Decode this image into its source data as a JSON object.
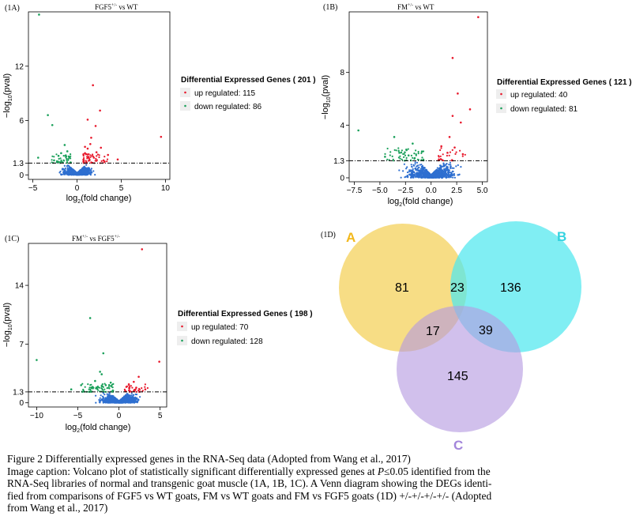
{
  "colors": {
    "up": "#e8192c",
    "down": "#1aa05a",
    "ns": "#2e6fd0",
    "venn_a": "#f5d66a",
    "venn_b": "#4fe8ee",
    "venn_c": "#b59ae0",
    "venn_label_a": "#f2b81c",
    "venn_label_b": "#35d3e0",
    "venn_label_c": "#a386db"
  },
  "chart_data": [
    {
      "type": "scatter",
      "panel": "(1A)",
      "title_main": "FGF5",
      "title_sup": "+/-",
      "title_rest": " vs WT",
      "xlabel_base": "log",
      "xlabel_sub": "2",
      "xlabel_rest": "(fold change)",
      "ylabel_base": "−log",
      "ylabel_sub": "10",
      "ylabel_rest": "(pval)",
      "xlim": [
        -5.5,
        10.5
      ],
      "ylim": [
        -0.5,
        18
      ],
      "xticks": [
        -5,
        0,
        5,
        10
      ],
      "yticks": [
        0,
        1.3,
        6,
        12
      ],
      "threshold": 1.3,
      "legend_title": "Differential Expressed Genes ( 201 )",
      "legend_up": "up regulated: 115",
      "legend_down": "down regulated: 86",
      "highlights": {
        "up": [
          [
            9.5,
            4.2
          ],
          [
            1.8,
            9.9
          ],
          [
            2.6,
            7.1
          ],
          [
            1.2,
            6.1
          ],
          [
            2.1,
            5.4
          ],
          [
            1.5,
            3.4
          ],
          [
            0.9,
            3.1
          ],
          [
            2.2,
            2.5
          ],
          [
            3.5,
            2.2
          ],
          [
            4.6,
            1.7
          ],
          [
            1.2,
            2.9
          ],
          [
            2.7,
            3.0
          ],
          [
            1.6,
            4.1
          ],
          [
            0.9,
            2.4
          ],
          [
            1.9,
            1.9
          ],
          [
            3.0,
            1.6
          ]
        ],
        "down": [
          [
            -4.3,
            17.7
          ],
          [
            -3.3,
            6.6
          ],
          [
            -2.8,
            5.5
          ],
          [
            -4.4,
            1.9
          ],
          [
            -1.8,
            2.4
          ],
          [
            -1.4,
            3.3
          ],
          [
            -2.1,
            2.1
          ],
          [
            -1.1,
            2.6
          ],
          [
            -0.9,
            2.0
          ],
          [
            -2.6,
            1.6
          ]
        ]
      },
      "cloud": {
        "sx": 0.9,
        "up_x": [
          0.7,
          3.5
        ],
        "down_x": [
          -3.0,
          -0.7
        ],
        "up_n": 60,
        "down_n": 45
      }
    },
    {
      "type": "scatter",
      "panel": "(1B)",
      "title_main": "FM",
      "title_sup": "+/-",
      "title_rest": " vs WT",
      "xlabel_base": "log",
      "xlabel_sub": "2",
      "xlabel_rest": "(fold change)",
      "ylabel_base": "−log",
      "ylabel_sub": "10",
      "ylabel_rest": "(pval)",
      "xlim": [
        -8,
        5.5
      ],
      "ylim": [
        -0.3,
        12.6
      ],
      "xticks": [
        -7.5,
        -5.0,
        -2.5,
        0.0,
        2.5,
        5.0
      ],
      "yticks": [
        0,
        1.3,
        4,
        8
      ],
      "tick_labels": [
        "−7.5",
        "−5.0",
        "−2.5",
        "0.0",
        "2.5",
        "5.0"
      ],
      "threshold": 1.3,
      "legend_title": "Differential Expressed Genes ( 121 )",
      "legend_up": "up regulated: 40",
      "legend_down": "down regulated: 81",
      "highlights": {
        "up": [
          [
            4.6,
            12.2
          ],
          [
            2.1,
            9.1
          ],
          [
            2.6,
            6.4
          ],
          [
            3.8,
            5.2
          ],
          [
            2.1,
            4.7
          ],
          [
            2.9,
            4.2
          ],
          [
            1.8,
            3.1
          ],
          [
            1.0,
            2.4
          ],
          [
            1.6,
            1.9
          ],
          [
            3.1,
            1.8
          ],
          [
            2.3,
            2.3
          ]
        ],
        "down": [
          [
            -7.1,
            3.6
          ],
          [
            -3.6,
            3.1
          ],
          [
            -2.4,
            2.1
          ],
          [
            -1.8,
            2.6
          ],
          [
            -3.1,
            1.9
          ],
          [
            -2.2,
            1.7
          ],
          [
            -0.9,
            2.0
          ],
          [
            -4.5,
            1.6
          ],
          [
            -1.6,
            1.5
          ]
        ]
      },
      "cloud": {
        "sx": 1.4,
        "up_x": [
          0.7,
          3.5
        ],
        "down_x": [
          -4.5,
          -0.7
        ],
        "up_n": 25,
        "down_n": 55
      }
    },
    {
      "type": "scatter",
      "panel": "(1C)",
      "title_main": "FM",
      "title_sup": "+/-",
      "title_rest": " vs FGF5",
      "title_sup2": "+/-",
      "xlabel_base": "log",
      "xlabel_sub": "2",
      "xlabel_rest": "(fold change)",
      "ylabel_base": "−log",
      "ylabel_sub": "10",
      "ylabel_rest": "(pval)",
      "xlim": [
        -11,
        5.8
      ],
      "ylim": [
        -0.5,
        19
      ],
      "xticks": [
        -10,
        -5,
        0,
        5
      ],
      "yticks": [
        0,
        1.3,
        7,
        14
      ],
      "tick_labels": [
        "−10",
        "−5",
        "0",
        "5"
      ],
      "threshold": 1.3,
      "legend_title": "Differential Expressed Genes ( 198 )",
      "legend_up": "up regulated: 70",
      "legend_down": "down regulated: 128",
      "highlights": {
        "up": [
          [
            2.8,
            18.3
          ],
          [
            4.9,
            4.9
          ],
          [
            2.4,
            3.1
          ],
          [
            1.2,
            2.2
          ],
          [
            1.8,
            2.5
          ],
          [
            3.2,
            1.6
          ],
          [
            0.9,
            1.9
          ],
          [
            2.1,
            1.8
          ]
        ],
        "down": [
          [
            -3.5,
            10.1
          ],
          [
            -10.0,
            5.1
          ],
          [
            -1.9,
            5.9
          ],
          [
            -2.1,
            3.4
          ],
          [
            -2.9,
            2.6
          ],
          [
            -4.6,
            2.1
          ],
          [
            -1.6,
            2.1
          ],
          [
            -2.3,
            3.7
          ],
          [
            -5.8,
            1.6
          ],
          [
            -1.0,
            2.4
          ],
          [
            -3.2,
            1.9
          ]
        ]
      },
      "cloud": {
        "sx": 1.3,
        "up_x": [
          0.7,
          3.5
        ],
        "down_x": [
          -4.5,
          -0.7
        ],
        "up_n": 35,
        "down_n": 70
      }
    }
  ],
  "venn": {
    "panel": "(1D)",
    "label_a": "A",
    "label_b": "B",
    "label_c": "C",
    "only_a": "81",
    "only_b": "136",
    "only_c": "145",
    "ab": "23",
    "ac": "17",
    "bc": "39"
  },
  "caption": {
    "line1": "Figure 2 Differentially expressed genes in the RNA-Seq data (Adopted from Wang et al., 2017)",
    "line2_pre": "Image caption: Volcano plot of statistically significant differentially expressed genes at ",
    "line2_p": "P",
    "line2_post": "≤0.05 identified from the",
    "line3": "RNA-Seq libraries of normal and transgenic goat muscle (1A, 1B, 1C). A Venn diagram showing the DEGs identi-",
    "line4": "fied from comparisons of FGF5 vs WT goats, FM vs WT goats and FM vs FGF5 goats (1D) +/-+/-+/-+/- (Adopted",
    "line5": "from Wang et al., 2017)"
  }
}
